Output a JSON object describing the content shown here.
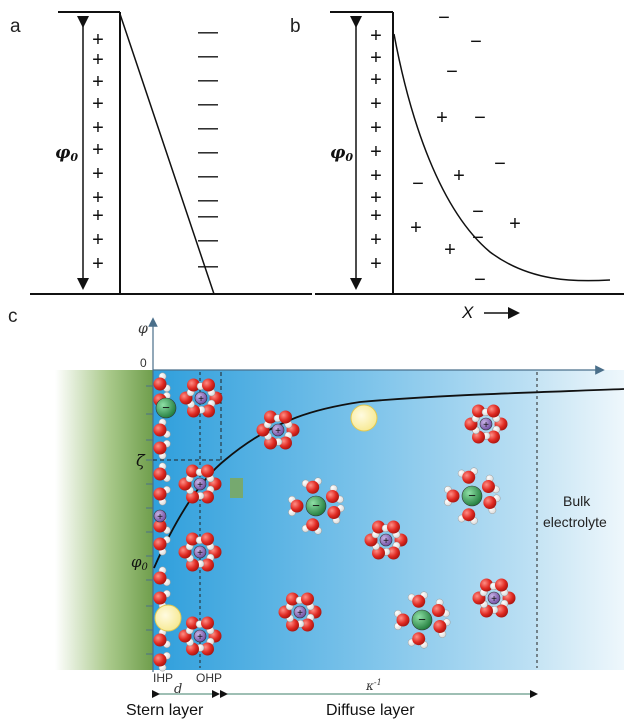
{
  "panel_a": {
    "label": "a",
    "potential_label": "φ",
    "potential_sub": "0",
    "plus_sign": "+",
    "minus_sign": "—"
  },
  "panel_b": {
    "label": "b",
    "potential_label": "φ",
    "potential_sub": "0",
    "plus_sign": "+",
    "minus_sign": "−",
    "x_axis_label": "X"
  },
  "panel_c": {
    "label": "c",
    "y_axis_label": "φ",
    "zero_label": "0",
    "zeta_label": "ζ",
    "phi0_label": "φ",
    "phi0_sub": "0",
    "ihp_label": "IHP",
    "ohp_label": "OHP",
    "d_label": "d",
    "kappa_label": "κ",
    "kappa_sup": "-1",
    "stern_layer_label": "Stern layer",
    "diffuse_layer_label": "Diffuse layer",
    "bulk_label_line1": "Bulk",
    "bulk_label_line2": "electrolyte",
    "cation_sign": "+",
    "anion_sign": "−"
  },
  "colors": {
    "electrode_green": "#7ea85a",
    "diffuse_blue": "#3aa8df",
    "bulk_blue": "#d4ebf7",
    "water_oxygen": "#e02a22",
    "cation": "#8b63b8",
    "anion": "#2e9b4e",
    "adsorbed_neutral": "#fff3a8"
  }
}
